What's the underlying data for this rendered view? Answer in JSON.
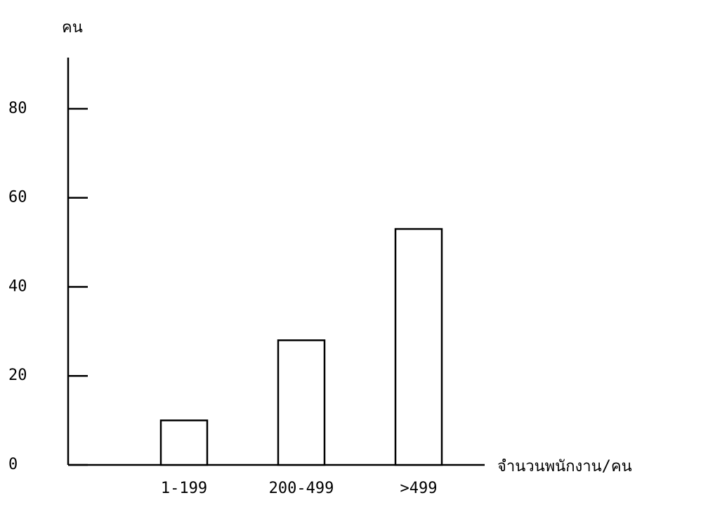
{
  "chart_data": {
    "type": "bar",
    "y_label": "คน",
    "x_label": "จำนวนพนักงาน/คน",
    "categories": [
      "1-199",
      "200-499",
      ">499"
    ],
    "values": [
      10,
      28,
      53
    ],
    "color": "#ffffff",
    "ylim": [
      0,
      91.5
    ],
    "yticks": [
      0,
      20,
      40,
      60,
      80
    ],
    "grid": false
  }
}
